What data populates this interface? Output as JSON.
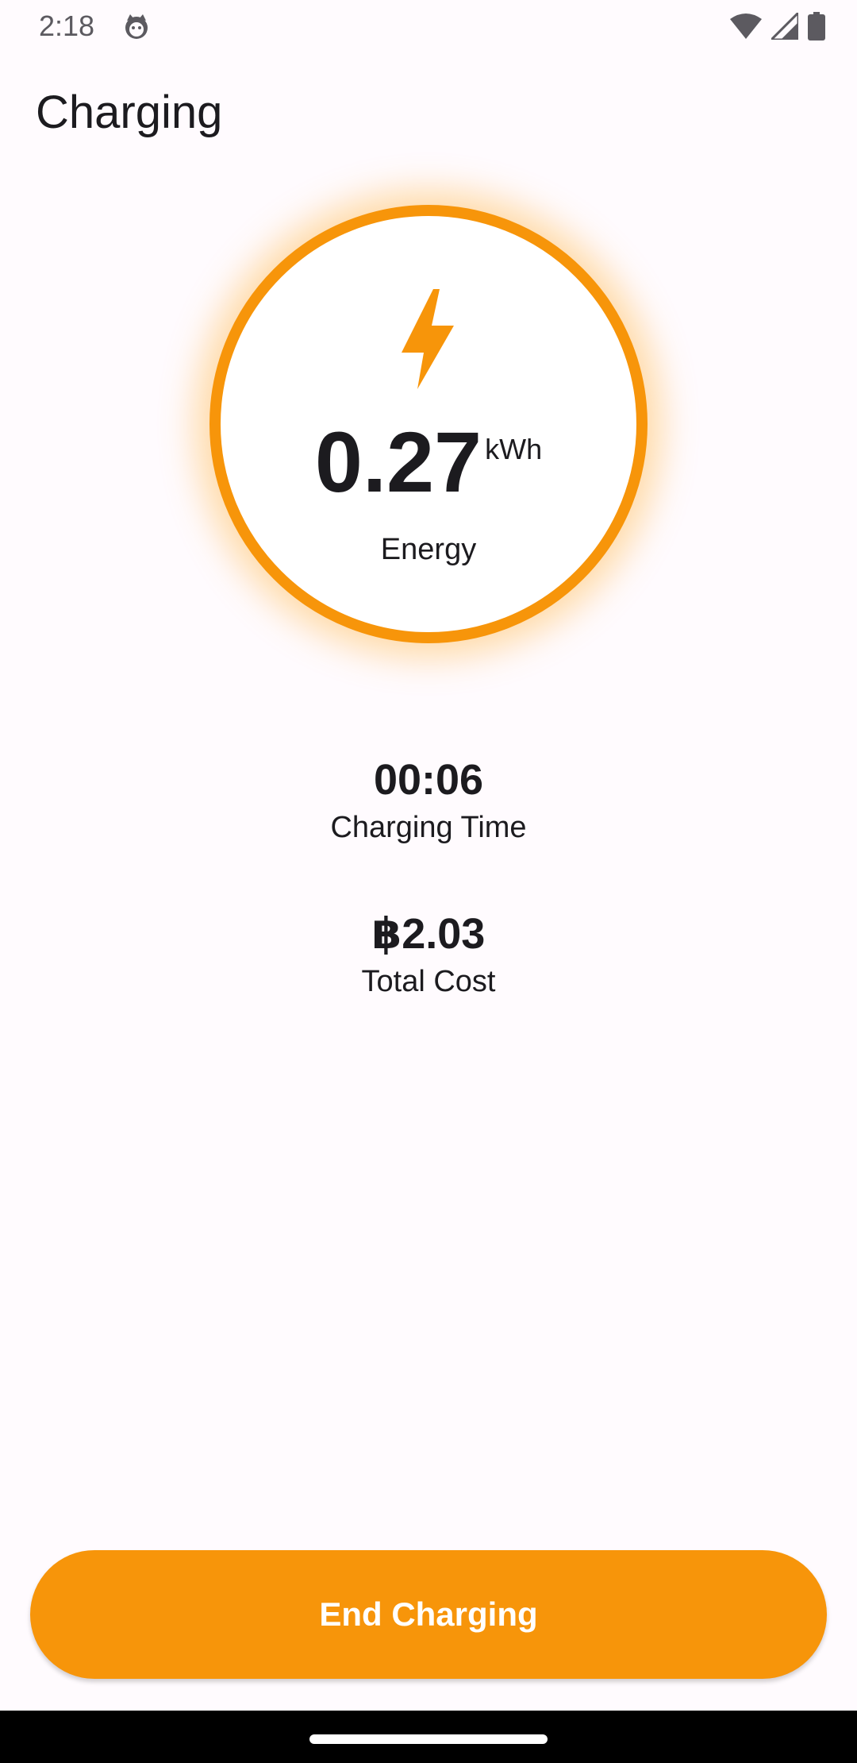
{
  "status_bar": {
    "time": "2:18",
    "icons": [
      "cat-face-notification-icon",
      "wifi-icon",
      "cellular-signal-icon",
      "battery-icon"
    ]
  },
  "app_bar": {
    "title": "Charging"
  },
  "energy": {
    "value": "0.27",
    "unit": "kWh",
    "label": "Energy",
    "icon": "lightning-bolt-icon"
  },
  "charging_time": {
    "value": "00:06",
    "label": "Charging Time"
  },
  "total_cost": {
    "value": "฿2.03",
    "label": "Total Cost"
  },
  "actions": {
    "end_label": "End Charging"
  },
  "colors": {
    "accent": "#f7950a",
    "background": "#fffbfe",
    "text": "#1c1b1f"
  }
}
